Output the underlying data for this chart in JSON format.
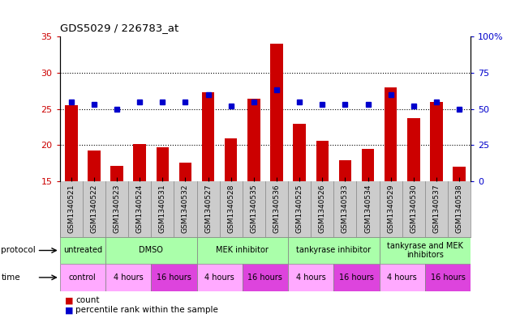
{
  "title": "GDS5029 / 226783_at",
  "samples": [
    "GSM1340521",
    "GSM1340522",
    "GSM1340523",
    "GSM1340524",
    "GSM1340531",
    "GSM1340532",
    "GSM1340527",
    "GSM1340528",
    "GSM1340535",
    "GSM1340536",
    "GSM1340525",
    "GSM1340526",
    "GSM1340533",
    "GSM1340534",
    "GSM1340529",
    "GSM1340530",
    "GSM1340537",
    "GSM1340538"
  ],
  "counts": [
    25.5,
    19.2,
    17.1,
    20.2,
    19.7,
    17.6,
    27.3,
    20.9,
    26.4,
    34.0,
    22.9,
    20.6,
    17.9,
    19.5,
    28.0,
    23.7,
    26.0,
    17.0
  ],
  "percentiles": [
    55,
    53,
    50,
    55,
    55,
    55,
    60,
    52,
    55,
    63,
    55,
    53,
    53,
    53,
    60,
    52,
    55,
    50
  ],
  "ymin": 15,
  "ymax": 35,
  "y2min": 0,
  "y2max": 100,
  "yticks": [
    15,
    20,
    25,
    30,
    35
  ],
  "y2ticks": [
    0,
    25,
    50,
    75,
    100
  ],
  "bar_color": "#cc0000",
  "dot_color": "#0000cc",
  "bar_width": 0.55,
  "protocol_labels": [
    "untreated",
    "DMSO",
    "MEK inhibitor",
    "tankyrase inhibitor",
    "tankyrase and MEK\ninhibitors"
  ],
  "protocol_sample_counts": [
    2,
    4,
    4,
    4,
    4
  ],
  "protocol_color": "#aaffaa",
  "time_labels": [
    "control",
    "4 hours",
    "16 hours",
    "4 hours",
    "16 hours",
    "4 hours",
    "16 hours",
    "4 hours",
    "16 hours"
  ],
  "time_sample_counts": [
    2,
    2,
    2,
    2,
    2,
    2,
    2,
    2,
    2
  ],
  "time_color_odd": "#ffaaff",
  "time_color_even": "#ee55ee",
  "legend_count_label": "count",
  "legend_pct_label": "percentile rank within the sample",
  "background_color": "#ffffff",
  "sample_label_bg": "#cccccc",
  "bar_bottom": 15
}
